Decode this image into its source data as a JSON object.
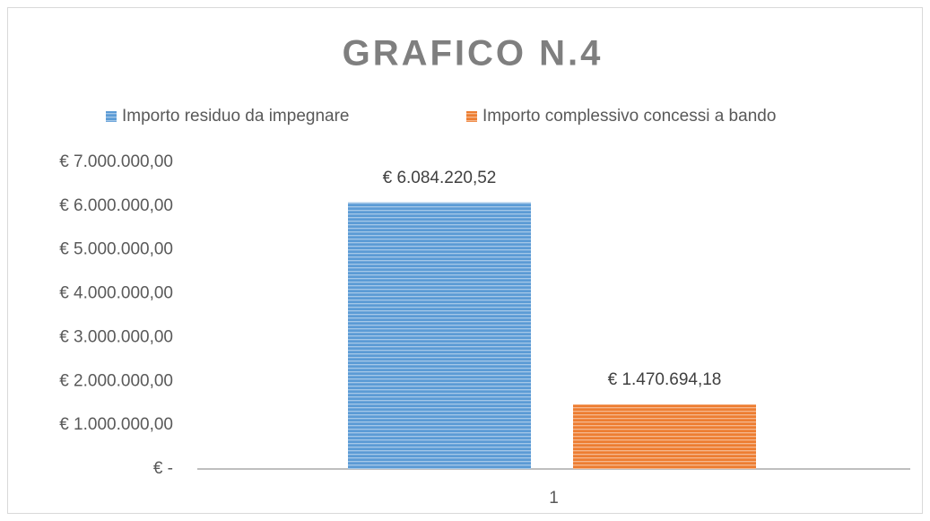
{
  "chart_data": {
    "type": "bar",
    "title": "GRAFICO N.4",
    "categories": [
      "1"
    ],
    "series": [
      {
        "name": "Importo residuo da impegnare",
        "color": "#5b9bd5",
        "values": [
          6084220.52
        ],
        "value_labels": [
          "€ 6.084.220,52"
        ]
      },
      {
        "name": "Importo complessivo concessi a bando",
        "color": "#ed7d31",
        "values": [
          1470694.18
        ],
        "value_labels": [
          "€ 1.470.694,18"
        ]
      }
    ],
    "ylim": [
      0,
      7000000
    ],
    "yticks": [
      {
        "value": 0,
        "label": "€ -"
      },
      {
        "value": 1000000,
        "label": "€ 1.000.000,00"
      },
      {
        "value": 2000000,
        "label": "€ 2.000.000,00"
      },
      {
        "value": 3000000,
        "label": "€ 3.000.000,00"
      },
      {
        "value": 4000000,
        "label": "€ 4.000.000,00"
      },
      {
        "value": 5000000,
        "label": "€ 5.000.000,00"
      },
      {
        "value": 6000000,
        "label": "€ 6.000.000,00"
      },
      {
        "value": 7000000,
        "label": "€ 7.000.000,00"
      }
    ],
    "grid": false,
    "legend": "top"
  }
}
